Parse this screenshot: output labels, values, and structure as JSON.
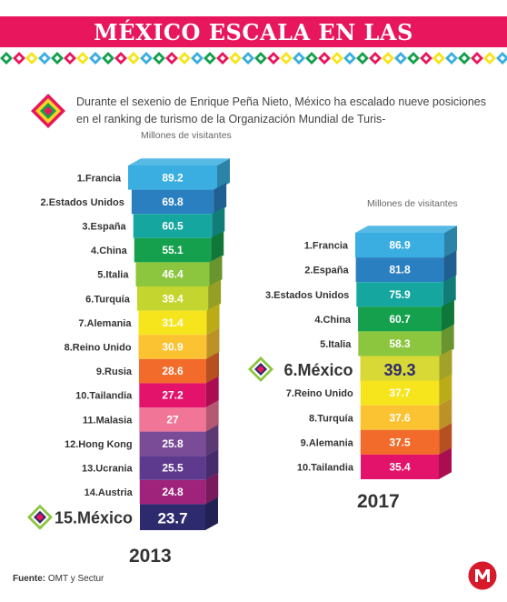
{
  "title": "MÉXICO ESCALA EN LAS PREFERENCIAS",
  "intro": "Durante el sexenio de Enrique Peña Nieto, México ha escalado nueve posiciones en el ranking de turismo de la Organización Mundial de Turis-",
  "source_label": "Fuente:",
  "source_text": "OMT y Sectur",
  "colors": {
    "title_bg": "#e8175d",
    "highlight_label": "#333333"
  },
  "icons": [
    "diamond-icon",
    "milenio-logo-icon"
  ],
  "chart_data": [
    {
      "type": "bar",
      "year": "2013",
      "unit_label": "Millones de visitantes",
      "categories": [
        "1.Francia",
        "2.Estados Unidos",
        "3.España",
        "4.China",
        "5.Italia",
        "6.Turquía",
        "7.Alemania",
        "8.Reino Unido",
        "9.Rusia",
        "10.Tailandia",
        "11.Malasia",
        "12.Hong Kong",
        "13.Ucrania",
        "14.Austria",
        "15.México"
      ],
      "values": [
        89.2,
        69.8,
        60.5,
        55.1,
        46.4,
        39.4,
        31.4,
        30.9,
        28.6,
        27.2,
        27,
        25.8,
        25.5,
        24.8,
        23.7
      ],
      "value_labels": [
        "89.2",
        "69.8",
        "60.5",
        "55.1",
        "46.4",
        "39.4",
        "31.4",
        "30.9",
        "28.6",
        "27.2",
        "27",
        "25.8",
        "25.5",
        "24.8",
        "23.7"
      ],
      "bar_colors": [
        "#3aaee0",
        "#2a7fc1",
        "#16a6a0",
        "#14a04c",
        "#8cc63f",
        "#c5d52f",
        "#f6e51d",
        "#fbc232",
        "#f26b2a",
        "#e3136b",
        "#f17596",
        "#7a4c98",
        "#5e3a8e",
        "#a0237b",
        "#2e2a6e"
      ],
      "highlight_index": 14
    },
    {
      "type": "bar",
      "year": "2017",
      "unit_label": "Millones de visitantes",
      "categories": [
        "1.Francia",
        "2.España",
        "3.Estados Unidos",
        "4.China",
        "5.Italia",
        "6.México",
        "7.Reino Unido",
        "8.Turquía",
        "9.Alemania",
        "10.Tailandia"
      ],
      "values": [
        86.9,
        81.8,
        75.9,
        60.7,
        58.3,
        39.3,
        37.7,
        37.6,
        37.5,
        35.4
      ],
      "value_labels": [
        "86.9",
        "81.8",
        "75.9",
        "60.7",
        "58.3",
        "39.3",
        "37.7",
        "37.6",
        "37.5",
        "35.4"
      ],
      "bar_colors": [
        "#3aaee0",
        "#2a7fc1",
        "#16a6a0",
        "#14a04c",
        "#8cc63f",
        "#d8d836",
        "#f6e51d",
        "#fbc232",
        "#f26b2a",
        "#e3136b"
      ],
      "highlight_index": 5
    }
  ]
}
